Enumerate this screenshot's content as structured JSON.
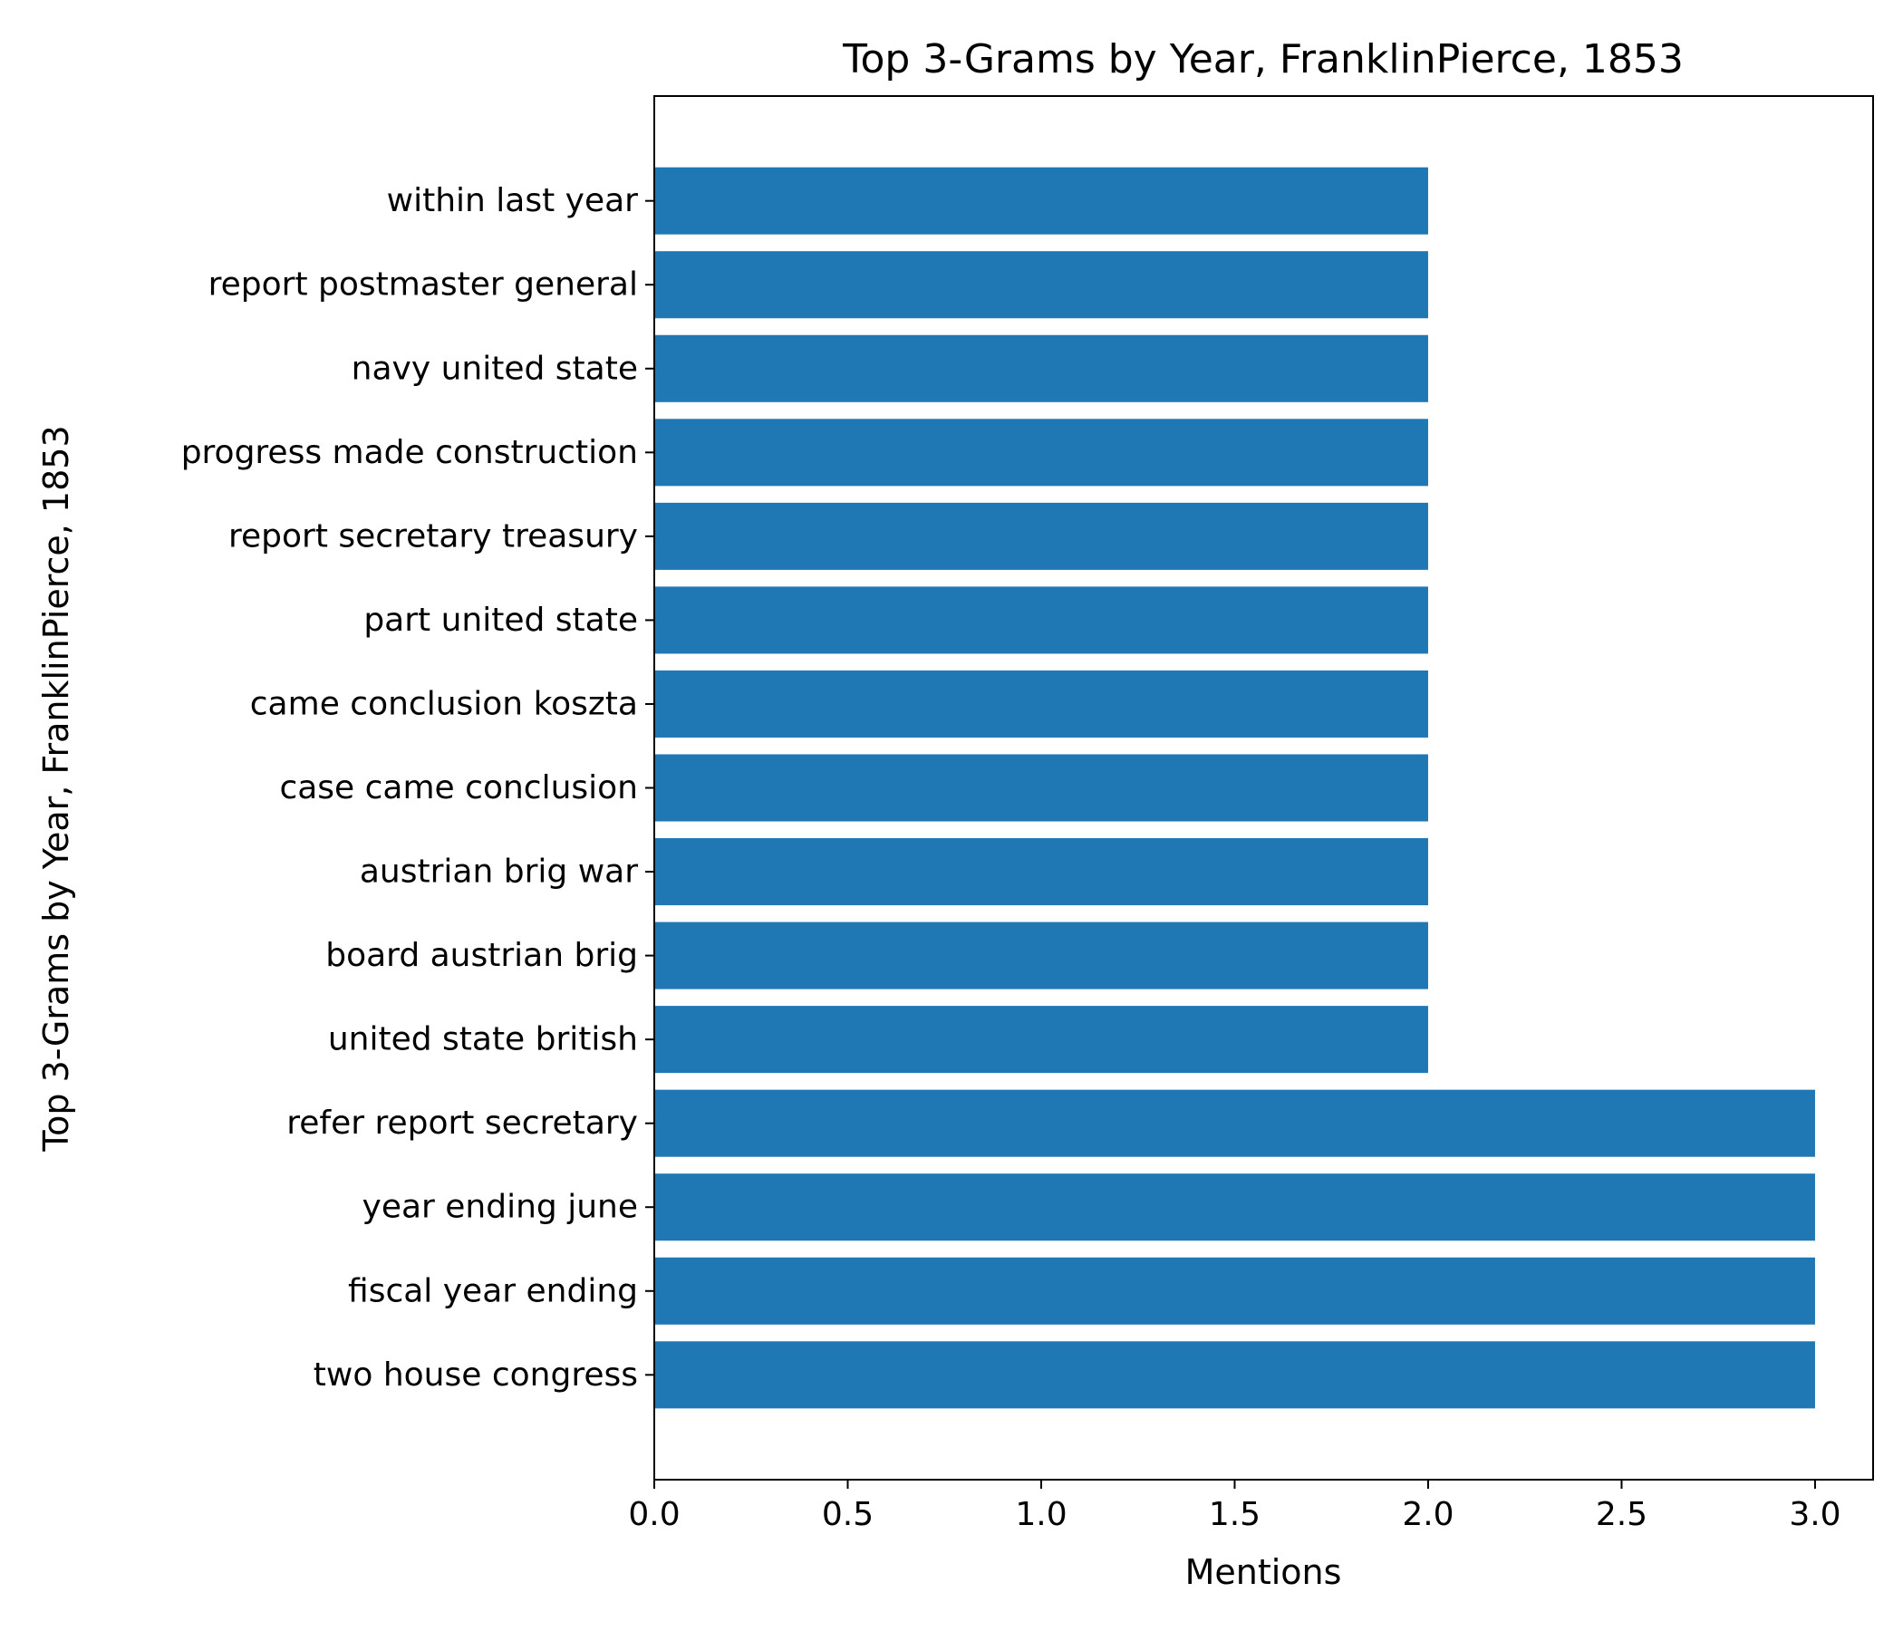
{
  "chart_data": {
    "type": "bar",
    "orientation": "horizontal",
    "title": "Top 3-Grams by Year, FranklinPierce, 1853",
    "xlabel": "Mentions",
    "ylabel": "Top 3-Grams by Year, FranklinPierce, 1853",
    "xlim": [
      0,
      3.15
    ],
    "xticks": [
      "0.0",
      "0.5",
      "1.0",
      "1.5",
      "2.0",
      "2.5",
      "3.0"
    ],
    "grid": false,
    "legend": "none",
    "bar_color": "#1f77b4",
    "categories": [
      "two house congress",
      "fiscal year ending",
      "year ending june",
      "refer report secretary",
      "united state british",
      "board austrian brig",
      "austrian brig war",
      "case came conclusion",
      "came conclusion koszta",
      "part united state",
      "report secretary treasury",
      "progress made construction",
      "navy united state",
      "report postmaster general",
      "within last year"
    ],
    "values": [
      3,
      3,
      3,
      3,
      2,
      2,
      2,
      2,
      2,
      2,
      2,
      2,
      2,
      2,
      2
    ]
  }
}
